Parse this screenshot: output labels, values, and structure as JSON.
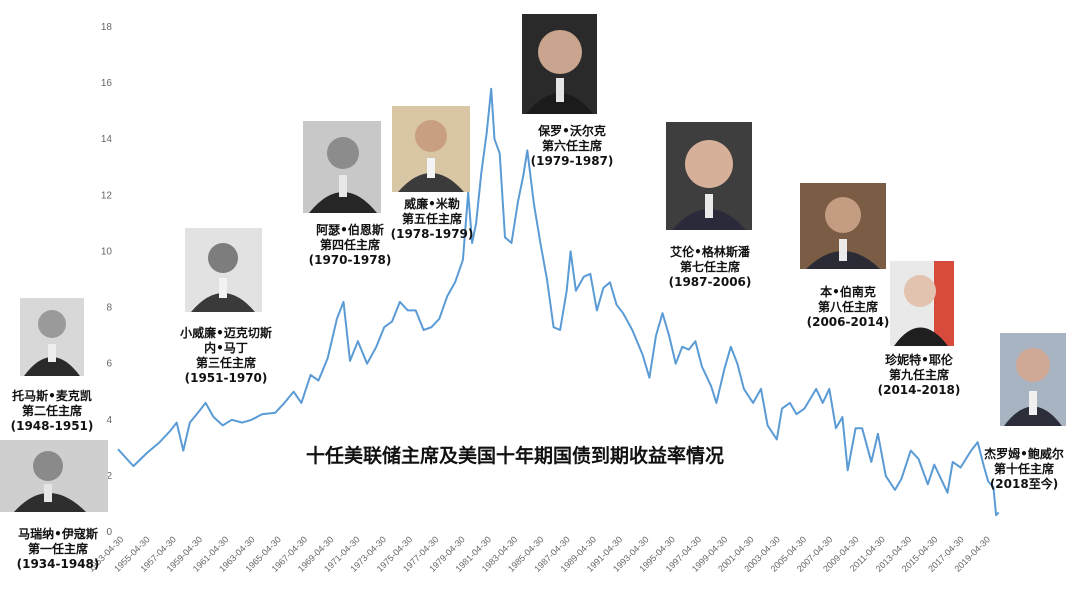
{
  "chart_data": {
    "type": "line",
    "title": "十任美联储主席及美国十年期国债到期收益率情况",
    "xlabel": "",
    "ylabel": "",
    "ylim": [
      0,
      18
    ],
    "y_ticks": [
      "0",
      "2",
      "4",
      "6",
      "8",
      "10",
      "12",
      "14",
      "16",
      "18"
    ],
    "x_ticks": [
      "1953-04-30",
      "1955-04-30",
      "1957-04-30",
      "1959-04-30",
      "1961-04-30",
      "1963-04-30",
      "1965-04-30",
      "1967-04-30",
      "1969-04-30",
      "1971-04-30",
      "1973-04-30",
      "1975-04-30",
      "1977-04-30",
      "1979-04-30",
      "1981-04-30",
      "1983-04-30",
      "1985-04-30",
      "1987-04-30",
      "1989-04-30",
      "1991-04-30",
      "1993-04-30",
      "1995-04-30",
      "1997-04-30",
      "1999-04-30",
      "2001-04-30",
      "2003-04-30",
      "2005-04-30",
      "2007-04-30",
      "2009-04-30",
      "2011-04-30",
      "2013-04-30",
      "2015-04-30",
      "2017-04-30",
      "2019-04-30"
    ],
    "line_color": "#5b9bd5",
    "grid": false,
    "series": [
      {
        "name": "",
        "points": [
          [
            1953.33,
            2.95
          ],
          [
            1954.5,
            2.35
          ],
          [
            1955.5,
            2.8
          ],
          [
            1956.5,
            3.2
          ],
          [
            1957.3,
            3.6
          ],
          [
            1957.8,
            3.9
          ],
          [
            1958.3,
            2.9
          ],
          [
            1958.8,
            3.9
          ],
          [
            1959.5,
            4.3
          ],
          [
            1960.0,
            4.6
          ],
          [
            1960.6,
            4.1
          ],
          [
            1961.3,
            3.8
          ],
          [
            1962.0,
            4.0
          ],
          [
            1962.8,
            3.9
          ],
          [
            1963.5,
            4.0
          ],
          [
            1964.3,
            4.2
          ],
          [
            1965.3,
            4.25
          ],
          [
            1966.0,
            4.6
          ],
          [
            1966.7,
            5.0
          ],
          [
            1967.3,
            4.6
          ],
          [
            1968.0,
            5.6
          ],
          [
            1968.6,
            5.4
          ],
          [
            1969.3,
            6.2
          ],
          [
            1970.0,
            7.6
          ],
          [
            1970.5,
            8.2
          ],
          [
            1971.0,
            6.1
          ],
          [
            1971.6,
            6.8
          ],
          [
            1972.3,
            6.0
          ],
          [
            1973.0,
            6.6
          ],
          [
            1973.6,
            7.3
          ],
          [
            1974.2,
            7.5
          ],
          [
            1974.8,
            8.2
          ],
          [
            1975.4,
            7.9
          ],
          [
            1976.0,
            7.9
          ],
          [
            1976.6,
            7.2
          ],
          [
            1977.2,
            7.3
          ],
          [
            1977.8,
            7.6
          ],
          [
            1978.4,
            8.4
          ],
          [
            1979.0,
            8.9
          ],
          [
            1979.6,
            9.7
          ],
          [
            1980.0,
            12.1
          ],
          [
            1980.3,
            10.3
          ],
          [
            1980.6,
            11.0
          ],
          [
            1981.0,
            12.8
          ],
          [
            1981.4,
            14.2
          ],
          [
            1981.75,
            15.8
          ],
          [
            1982.0,
            14.0
          ],
          [
            1982.4,
            13.5
          ],
          [
            1982.8,
            10.5
          ],
          [
            1983.3,
            10.3
          ],
          [
            1983.8,
            11.8
          ],
          [
            1984.2,
            12.7
          ],
          [
            1984.5,
            13.6
          ],
          [
            1985.0,
            11.7
          ],
          [
            1985.5,
            10.3
          ],
          [
            1986.0,
            9.0
          ],
          [
            1986.5,
            7.3
          ],
          [
            1987.0,
            7.2
          ],
          [
            1987.5,
            8.6
          ],
          [
            1987.8,
            10.0
          ],
          [
            1988.2,
            8.6
          ],
          [
            1988.8,
            9.1
          ],
          [
            1989.3,
            9.2
          ],
          [
            1989.8,
            7.9
          ],
          [
            1990.3,
            8.7
          ],
          [
            1990.8,
            8.9
          ],
          [
            1991.3,
            8.1
          ],
          [
            1991.8,
            7.8
          ],
          [
            1992.5,
            7.2
          ],
          [
            1993.3,
            6.3
          ],
          [
            1993.8,
            5.5
          ],
          [
            1994.3,
            7.0
          ],
          [
            1994.8,
            7.8
          ],
          [
            1995.3,
            7.0
          ],
          [
            1995.8,
            6.0
          ],
          [
            1996.3,
            6.6
          ],
          [
            1996.8,
            6.5
          ],
          [
            1997.3,
            6.8
          ],
          [
            1997.8,
            5.9
          ],
          [
            1998.5,
            5.2
          ],
          [
            1998.9,
            4.6
          ],
          [
            1999.5,
            5.8
          ],
          [
            2000.0,
            6.6
          ],
          [
            2000.5,
            6.0
          ],
          [
            2001.0,
            5.1
          ],
          [
            2001.7,
            4.6
          ],
          [
            2002.3,
            5.1
          ],
          [
            2002.8,
            3.8
          ],
          [
            2003.5,
            3.3
          ],
          [
            2003.9,
            4.4
          ],
          [
            2004.5,
            4.6
          ],
          [
            2005.0,
            4.2
          ],
          [
            2005.6,
            4.4
          ],
          [
            2006.5,
            5.1
          ],
          [
            2007.0,
            4.6
          ],
          [
            2007.5,
            5.1
          ],
          [
            2008.0,
            3.7
          ],
          [
            2008.5,
            4.1
          ],
          [
            2008.9,
            2.2
          ],
          [
            2009.5,
            3.7
          ],
          [
            2010.0,
            3.7
          ],
          [
            2010.7,
            2.5
          ],
          [
            2011.2,
            3.5
          ],
          [
            2011.8,
            2.0
          ],
          [
            2012.5,
            1.5
          ],
          [
            2013.0,
            1.9
          ],
          [
            2013.7,
            2.9
          ],
          [
            2014.3,
            2.6
          ],
          [
            2015.0,
            1.7
          ],
          [
            2015.5,
            2.4
          ],
          [
            2016.5,
            1.4
          ],
          [
            2016.9,
            2.5
          ],
          [
            2017.5,
            2.3
          ],
          [
            2018.3,
            2.9
          ],
          [
            2018.8,
            3.2
          ],
          [
            2019.3,
            2.3
          ],
          [
            2019.6,
            1.8
          ],
          [
            2020.0,
            1.6
          ],
          [
            2020.2,
            0.6
          ],
          [
            2020.4,
            0.7
          ]
        ]
      }
    ]
  },
  "chairs": [
    {
      "name": "马瑞纳•伊寇斯",
      "title": "第一任主席",
      "term": "(1934-1948)"
    },
    {
      "name": "托马斯•麦克凯",
      "title": "第二任主席",
      "term": "(1948-1951)"
    },
    {
      "name": "小威廉•迈克切斯\n内•马丁",
      "title": "第三任主席",
      "term": "(1951-1970)"
    },
    {
      "name": "阿瑟•伯恩斯",
      "title": "第四任主席",
      "term": "(1970-1978)"
    },
    {
      "name": "威廉•米勒",
      "title": "第五任主席",
      "term": "(1978-1979)"
    },
    {
      "name": "保罗•沃尔克",
      "title": "第六任主席",
      "term": "(1979-1987)"
    },
    {
      "name": "艾伦•格林斯潘",
      "title": "第七任主席",
      "term": "(1987-2006)"
    },
    {
      "name": "本•伯南克",
      "title": "第八任主席",
      "term": "(2006-2014)"
    },
    {
      "name": "珍妮特•耶伦",
      "title": "第九任主席",
      "term": "(2014-2018)"
    },
    {
      "name": "杰罗姆•鲍威尔",
      "title": "第十任主席",
      "term": "(2018至今)"
    }
  ],
  "portrait_icons": [
    "portrait-eccles",
    "portrait-mccabe",
    "portrait-martin",
    "portrait-burns",
    "portrait-miller",
    "portrait-volcker",
    "portrait-greenspan",
    "portrait-bernanke",
    "portrait-yellen",
    "portrait-powell"
  ]
}
